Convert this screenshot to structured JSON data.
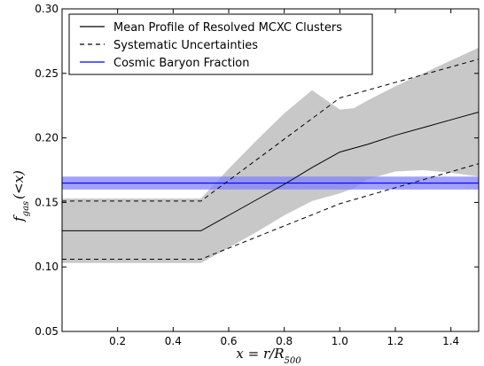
{
  "chart_data": {
    "type": "line",
    "title": "",
    "xlabel": "x = r/R500",
    "ylabel": "f_gas(<x)",
    "xlim": [
      0.0,
      1.5
    ],
    "ylim": [
      0.05,
      0.3
    ],
    "x_ticks": [
      0.2,
      0.4,
      0.6,
      0.8,
      1.0,
      1.2,
      1.4
    ],
    "x_tick_labels": [
      "0.2",
      "0.4",
      "0.6",
      "0.8",
      "1.0",
      "1.2",
      "1.4"
    ],
    "y_ticks": [
      0.05,
      0.1,
      0.15,
      0.2,
      0.25,
      0.3
    ],
    "y_tick_labels": [
      "0.05",
      "0.10",
      "0.15",
      "0.20",
      "0.25",
      "0.30"
    ],
    "grid": false,
    "legend_position": "top-left",
    "legend": [
      {
        "label": "Mean Profile of Resolved MCXC Clusters",
        "style": "solid",
        "color": "#000000"
      },
      {
        "label": "Systematic Uncertainties",
        "style": "dashed",
        "color": "#000000"
      },
      {
        "label": "Cosmic Baryon Fraction",
        "style": "solid",
        "color": "#0000ff"
      }
    ],
    "series": [
      {
        "name": "Mean Profile of Resolved MCXC Clusters",
        "style": "solid",
        "color": "#000000",
        "x": [
          0.0,
          0.5,
          0.6,
          0.7,
          0.8,
          0.9,
          1.0,
          1.1,
          1.2,
          1.3,
          1.4,
          1.5
        ],
        "y": [
          0.128,
          0.128,
          0.14,
          0.152,
          0.164,
          0.177,
          0.189,
          0.195,
          0.202,
          0.208,
          0.214,
          0.22
        ]
      },
      {
        "name": "Systematic Uncertainties (upper)",
        "style": "dashed",
        "color": "#000000",
        "x": [
          0.0,
          0.5,
          1.0,
          1.5
        ],
        "y": [
          0.151,
          0.151,
          0.231,
          0.261
        ]
      },
      {
        "name": "Systematic Uncertainties (lower)",
        "style": "dashed",
        "color": "#000000",
        "x": [
          0.0,
          0.5,
          1.0,
          1.5
        ],
        "y": [
          0.106,
          0.106,
          0.149,
          0.18
        ]
      }
    ],
    "band": {
      "name": "Statistical uncertainty",
      "color": "#c8c8c8",
      "x": [
        0.0,
        0.5,
        0.6,
        0.7,
        0.8,
        0.9,
        1.0,
        1.05,
        1.1,
        1.2,
        1.3,
        1.4,
        1.5
      ],
      "upper": [
        0.153,
        0.153,
        0.176,
        0.198,
        0.219,
        0.237,
        0.222,
        0.223,
        0.229,
        0.24,
        0.25,
        0.26,
        0.27
      ],
      "lower": [
        0.103,
        0.103,
        0.115,
        0.127,
        0.14,
        0.151,
        0.157,
        0.161,
        0.168,
        0.174,
        0.175,
        0.173,
        0.17
      ]
    },
    "cosmic_baryon_fraction": {
      "name": "Cosmic Baryon Fraction",
      "value": 0.165,
      "band": [
        0.16,
        0.17
      ],
      "line_color": "#0000ff",
      "band_color": "#8080ff"
    }
  }
}
